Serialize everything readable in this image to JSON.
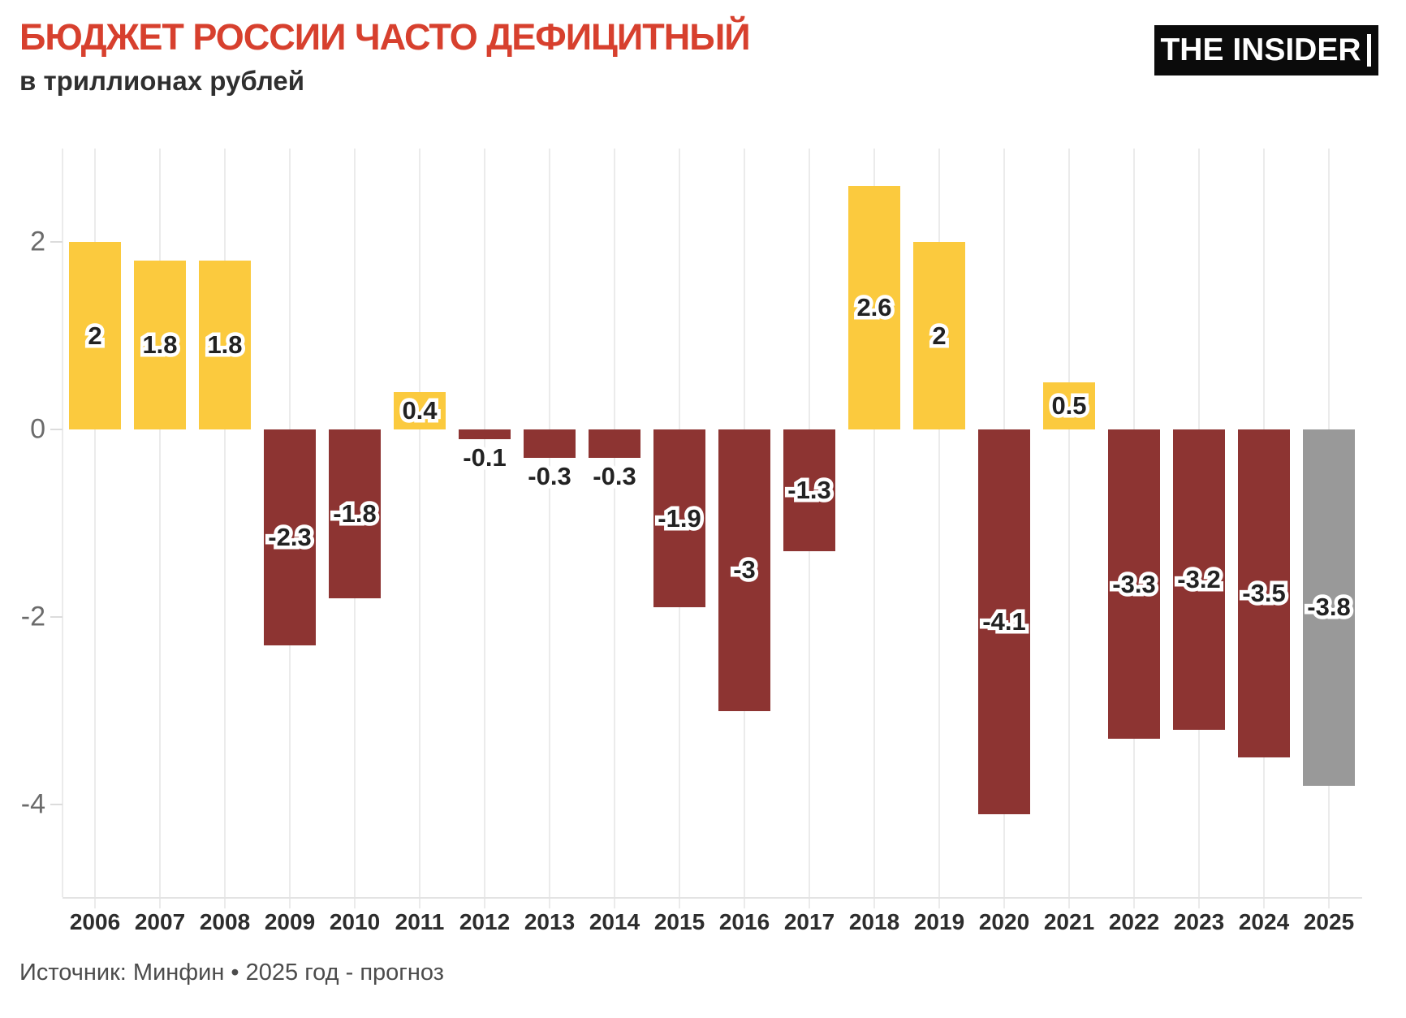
{
  "header": {
    "title": "БЮДЖЕТ РОССИИ ЧАСТО ДЕФИЦИТНЫЙ",
    "subtitle": "в триллионах рублей",
    "logo_text": "THE INSIDER"
  },
  "footer": {
    "source": "Источник: Минфин • 2025 год - прогноз"
  },
  "chart_data": {
    "type": "bar",
    "title": "БЮДЖЕТ РОССИИ ЧАСТО ДЕФИЦИТНЫЙ",
    "subtitle": "в триллионах рублей",
    "categories": [
      "2006",
      "2007",
      "2008",
      "2009",
      "2010",
      "2011",
      "2012",
      "2013",
      "2014",
      "2015",
      "2016",
      "2017",
      "2018",
      "2019",
      "2020",
      "2021",
      "2022",
      "2023",
      "2024",
      "2025"
    ],
    "values": [
      2,
      1.8,
      1.8,
      -2.3,
      -1.8,
      0.4,
      -0.1,
      -0.3,
      -0.3,
      -1.9,
      -3,
      -1.3,
      2.6,
      2,
      -4.1,
      0.5,
      -3.3,
      -3.2,
      -3.5,
      -3.8
    ],
    "labels": [
      "2",
      "1.8",
      "1.8",
      "-2.3",
      "-1.8",
      "0.4",
      "-0.1",
      "-0.3",
      "-0.3",
      "-1.9",
      "-3",
      "-1.3",
      "2.6",
      "2",
      "-4.1",
      "0.5",
      "-3.3",
      "-3.2",
      "-3.5",
      "-3.8"
    ],
    "point_colors": [
      "surplus",
      "surplus",
      "surplus",
      "deficit",
      "deficit",
      "surplus",
      "deficit",
      "deficit",
      "deficit",
      "deficit",
      "deficit",
      "deficit",
      "surplus",
      "surplus",
      "deficit",
      "surplus",
      "deficit",
      "deficit",
      "deficit",
      "forecast"
    ],
    "colors": {
      "surplus": "#fbca3e",
      "deficit": "#8d3432",
      "forecast": "#999999"
    },
    "y_axis": {
      "tick_values": [
        2,
        0,
        -2,
        -4
      ],
      "tick_labels": [
        "2",
        "0",
        "-2",
        "-4"
      ],
      "range": [
        -5,
        3
      ]
    },
    "grid": "vertical line per category, light gray, no horizontal gridlines",
    "legend": "none",
    "note": "2025 bar shown in gray as forecast"
  }
}
